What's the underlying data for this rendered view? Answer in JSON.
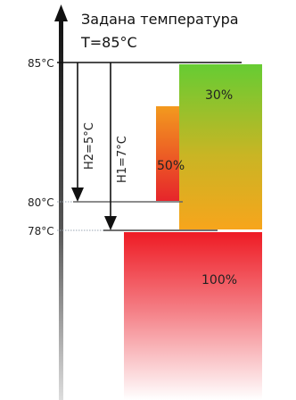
{
  "title": {
    "line1": "Задана температура",
    "line2": "T=85°C"
  },
  "axis": {
    "ticks": [
      {
        "label": "85°C",
        "value": 85
      },
      {
        "label": "80°C",
        "value": 80
      },
      {
        "label": "78°C",
        "value": 78
      }
    ]
  },
  "hysteresis": [
    {
      "label": "H2=5°C",
      "value": 5
    },
    {
      "label": "H1=7°C",
      "value": 7
    }
  ],
  "power_blocks": [
    {
      "label": "30%",
      "value": 30,
      "gradient": [
        "#66cc33",
        "#f7a51c"
      ]
    },
    {
      "label": "50%",
      "value": 50,
      "gradient": [
        "#f18a1e",
        "#e8322e"
      ]
    },
    {
      "label": "100%",
      "value": 100,
      "gradient": [
        "#ee1b24",
        "#fefefe"
      ]
    }
  ],
  "colors": {
    "axis": "#111111",
    "line": "#222222",
    "dotted": "#9aa6b2"
  }
}
